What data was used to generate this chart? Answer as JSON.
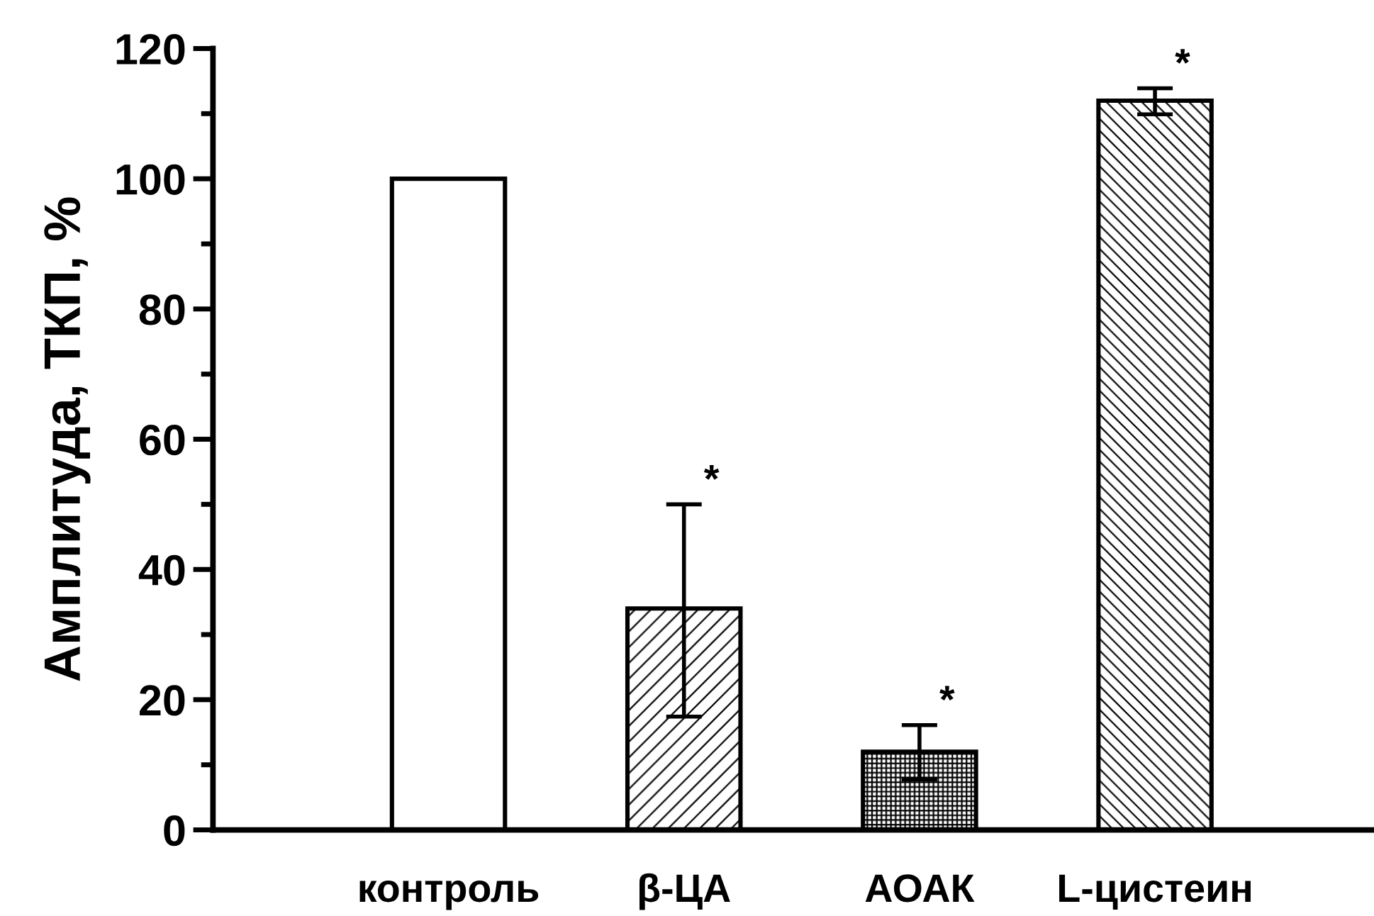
{
  "chart_data": {
    "type": "bar",
    "ylabel": "Амплитуда, ТКП, %",
    "categories": [
      "контроль",
      "β-ЦА",
      "АОАК",
      "L-цистеин"
    ],
    "values": [
      100,
      34,
      12,
      112
    ],
    "errors": [
      null,
      [
        17.4,
        50
      ],
      [
        7.7,
        16.1
      ],
      [
        109.9,
        113.9
      ]
    ],
    "ylim": [
      0,
      120
    ],
    "yticks": [
      0,
      20,
      40,
      60,
      80,
      100,
      120
    ],
    "grid": false,
    "legend": false,
    "annotations": [
      {
        "text": "*",
        "x": "β-ЦА",
        "y": 50
      },
      {
        "text": "*",
        "x": "АОАК",
        "y": 16.1
      },
      {
        "text": "*",
        "x": "L-цистеин",
        "y": 113.9
      }
    ]
  }
}
